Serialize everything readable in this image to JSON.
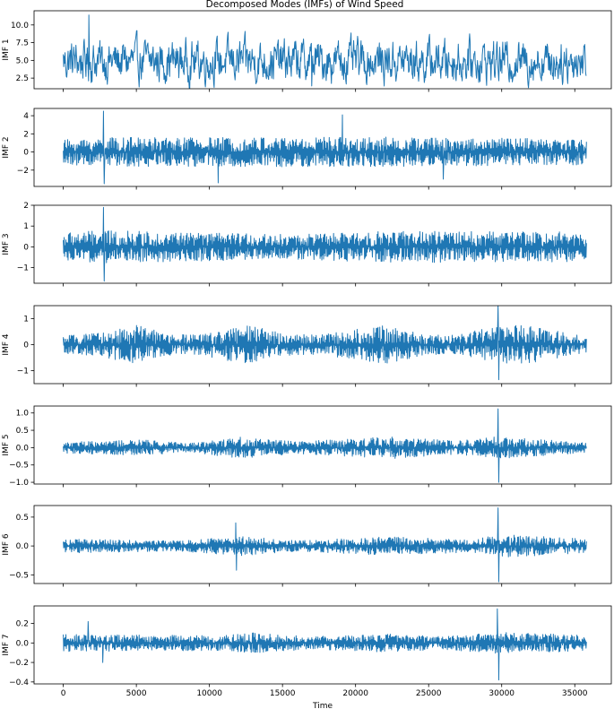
{
  "chart_data": {
    "type": "line",
    "title": "Decomposed Modes (IMFs) of Wind Speed",
    "xlabel": "Time",
    "xlim": [
      -2000,
      37500
    ],
    "x_ticks": [
      0,
      5000,
      10000,
      15000,
      20000,
      25000,
      30000,
      35000
    ],
    "x_tick_labels": [
      "0",
      "5000",
      "10000",
      "15000",
      "20000",
      "25000",
      "30000",
      "35000"
    ],
    "n_points": 35800,
    "line_color": "#1f77b4",
    "shared_x": true,
    "grid": false,
    "panels": [
      {
        "ylabel": "IMF 1",
        "ylim": [
          1.0,
          12.0
        ],
        "y_ticks": [
          2.5,
          5.0,
          7.5,
          10.0
        ],
        "y_tick_labels": [
          "2.5",
          "5.0",
          "7.5",
          "10.0"
        ],
        "center": 4.9,
        "spread": 2.8,
        "envelope": [
          [
            0,
            1.0
          ],
          [
            35800,
            1.0
          ]
        ],
        "spikes": [
          {
            "x": 1750,
            "y": 11.4
          },
          {
            "x": 17000,
            "y": 1.4
          }
        ],
        "smooth": true
      },
      {
        "ylabel": "IMF 2",
        "ylim": [
          -3.8,
          4.8
        ],
        "y_ticks": [
          -2,
          0,
          2,
          4
        ],
        "y_tick_labels": [
          "−2",
          "0",
          "2",
          "4"
        ],
        "center": 0,
        "spread": 1.6,
        "envelope": [
          [
            0,
            0.85
          ],
          [
            2700,
            1.0
          ],
          [
            10500,
            1.0
          ],
          [
            19000,
            1.05
          ],
          [
            35800,
            0.9
          ]
        ],
        "spikes": [
          {
            "x": 2750,
            "y": 4.5
          },
          {
            "x": 2800,
            "y": -3.5
          },
          {
            "x": 10600,
            "y": -3.4
          },
          {
            "x": 19100,
            "y": 4.1
          },
          {
            "x": 26000,
            "y": -3.0
          }
        ],
        "smooth": false
      },
      {
        "ylabel": "IMF 3",
        "ylim": [
          -1.75,
          2.0
        ],
        "y_ticks": [
          -1,
          0,
          1,
          2
        ],
        "y_tick_labels": [
          "−1",
          "0",
          "1",
          "2"
        ],
        "center": 0,
        "spread": 0.75,
        "envelope": [
          [
            0,
            0.9
          ],
          [
            2700,
            1.05
          ],
          [
            12000,
            0.85
          ],
          [
            16000,
            0.8
          ],
          [
            22000,
            1.0
          ],
          [
            28000,
            1.0
          ],
          [
            35800,
            0.95
          ]
        ],
        "spikes": [
          {
            "x": 2750,
            "y": 1.9
          },
          {
            "x": 2800,
            "y": -1.65
          }
        ],
        "smooth": false
      },
      {
        "ylabel": "IMF 4",
        "ylim": [
          -1.5,
          1.5
        ],
        "y_ticks": [
          -1,
          0,
          1
        ],
        "y_tick_labels": [
          "−1",
          "0",
          "1"
        ],
        "center": 0,
        "spread": 0.75,
        "envelope": [
          [
            0,
            0.45
          ],
          [
            2500,
            0.6
          ],
          [
            5000,
            1.0
          ],
          [
            7500,
            0.5
          ],
          [
            9500,
            0.55
          ],
          [
            12500,
            1.0
          ],
          [
            15500,
            0.55
          ],
          [
            17500,
            0.5
          ],
          [
            22000,
            1.0
          ],
          [
            25000,
            0.5
          ],
          [
            27000,
            0.5
          ],
          [
            30000,
            1.05
          ],
          [
            32000,
            0.95
          ],
          [
            35800,
            0.4
          ]
        ],
        "spikes": [
          {
            "x": 29750,
            "y": 1.5
          },
          {
            "x": 29800,
            "y": -1.35
          }
        ],
        "smooth": false
      },
      {
        "ylabel": "IMF 5",
        "ylim": [
          -1.05,
          1.2
        ],
        "y_ticks": [
          -1.0,
          -0.5,
          0.0,
          0.5,
          1.0
        ],
        "y_tick_labels": [
          "−1.0",
          "−0.5",
          "0.0",
          "0.5",
          "1.0"
        ],
        "center": 0,
        "spread": 0.32,
        "envelope": [
          [
            0,
            0.5
          ],
          [
            5500,
            0.7
          ],
          [
            8500,
            0.4
          ],
          [
            12000,
            1.0
          ],
          [
            16000,
            0.55
          ],
          [
            22500,
            1.0
          ],
          [
            27000,
            0.6
          ],
          [
            29700,
            1.0
          ],
          [
            35800,
            0.45
          ]
        ],
        "spikes": [
          {
            "x": 29750,
            "y": 1.12
          },
          {
            "x": 29800,
            "y": -1.0
          }
        ],
        "smooth": false
      },
      {
        "ylabel": "IMF 6",
        "ylim": [
          -0.65,
          0.7
        ],
        "y_ticks": [
          -0.5,
          0.0,
          0.5
        ],
        "y_tick_labels": [
          "−0.5",
          "0.0",
          "0.5"
        ],
        "center": 0,
        "spread": 0.2,
        "envelope": [
          [
            0,
            0.6
          ],
          [
            8000,
            0.45
          ],
          [
            12000,
            0.85
          ],
          [
            16000,
            0.45
          ],
          [
            22000,
            0.8
          ],
          [
            28000,
            0.55
          ],
          [
            30000,
            1.0
          ],
          [
            35800,
            0.6
          ]
        ],
        "spikes": [
          {
            "x": 11800,
            "y": 0.4
          },
          {
            "x": 11850,
            "y": -0.42
          },
          {
            "x": 29750,
            "y": 0.66
          },
          {
            "x": 29800,
            "y": -0.62
          }
        ],
        "smooth": false
      },
      {
        "ylabel": "IMF 7",
        "ylim": [
          -0.42,
          0.38
        ],
        "y_ticks": [
          -0.4,
          -0.2,
          0.0,
          0.2
        ],
        "y_tick_labels": [
          "−0.4",
          "−0.2",
          "0.0",
          "0.2"
        ],
        "center": 0,
        "spread": 0.11,
        "envelope": [
          [
            0,
            0.8
          ],
          [
            5000,
            0.75
          ],
          [
            11000,
            0.7
          ],
          [
            13000,
            0.95
          ],
          [
            17000,
            0.6
          ],
          [
            22000,
            0.85
          ],
          [
            26000,
            0.6
          ],
          [
            30000,
            1.0
          ],
          [
            35800,
            0.75
          ]
        ],
        "spikes": [
          {
            "x": 1700,
            "y": 0.22
          },
          {
            "x": 2700,
            "y": -0.2
          },
          {
            "x": 29700,
            "y": 0.35
          },
          {
            "x": 29800,
            "y": -0.38
          }
        ],
        "smooth": false
      }
    ]
  }
}
